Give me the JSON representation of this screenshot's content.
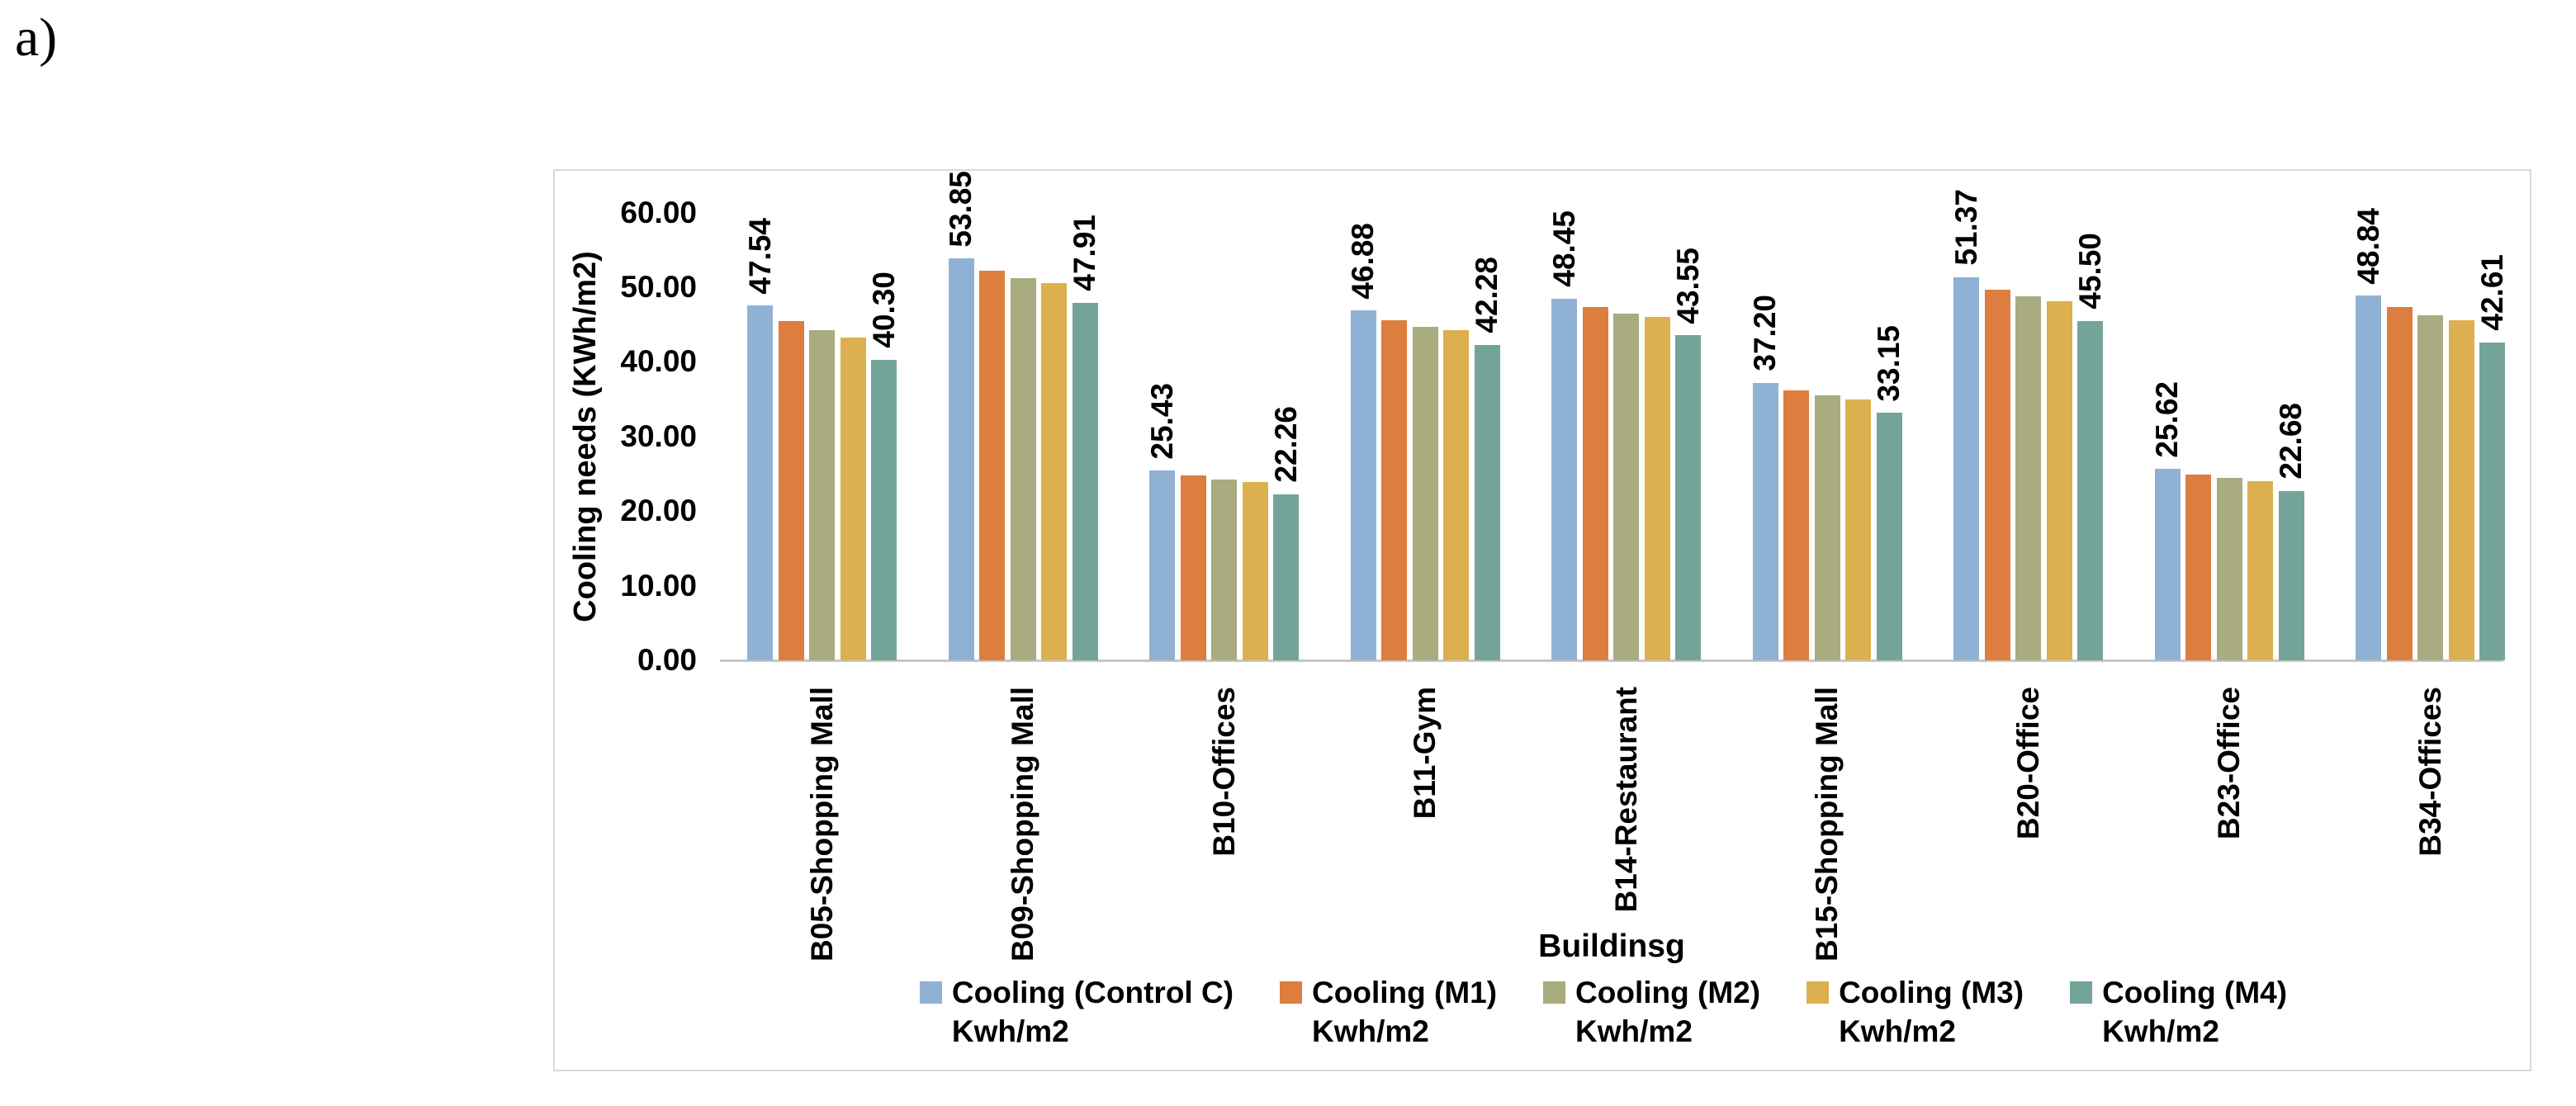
{
  "figure_label": "a)",
  "colors": {
    "series_blue": "#8FB2D4",
    "series_orange": "#DD7D3E",
    "series_olive": "#A8AC7E",
    "series_gold": "#DCB04F",
    "series_teal": "#74A499",
    "axis_line": "#C6C6C6",
    "frame_border": "#D9D9D9",
    "text": "#000000"
  },
  "chart_data": {
    "type": "bar",
    "title": "",
    "xlabel": "Buildinsg",
    "ylabel": "Cooling needs (KWh/m2)",
    "ylim": [
      0,
      60
    ],
    "grid": false,
    "legend_position": "bottom",
    "ytick_values": [
      60,
      50,
      40,
      30,
      20,
      10,
      0
    ],
    "ytick_labels": [
      "60.00",
      "50.00",
      "40.00",
      "30.00",
      "20.00",
      "10.00",
      "0.00"
    ],
    "categories": [
      "B05-Shopping Mall",
      "B09-Shopping Mall",
      "B10-Offices",
      "B11-Gym",
      "B14-Restaurant",
      "B15-Shopping Mall",
      "B20-Office",
      "B23-Office",
      "B34-Offices"
    ],
    "series": [
      {
        "name": "Cooling (Control C) Kwh/m2",
        "legend_line1": "Cooling (Control C)",
        "legend_line2": "Kwh/m2",
        "color": "#8FB2D4",
        "values": [
          47.54,
          53.85,
          25.43,
          46.88,
          48.45,
          37.2,
          51.37,
          25.62,
          48.84
        ],
        "data_labels": [
          "47.54",
          "53.85",
          "25.43",
          "46.88",
          "48.45",
          "37.20",
          "51.37",
          "25.62",
          "48.84"
        ]
      },
      {
        "name": "Cooling (M1) Kwh/m2",
        "legend_line1": "Cooling (M1)",
        "legend_line2": "Kwh/m2",
        "color": "#DD7D3E",
        "values": [
          45.5,
          52.2,
          24.8,
          45.6,
          47.3,
          36.2,
          49.7,
          24.9,
          47.3
        ],
        "data_labels": []
      },
      {
        "name": "Cooling (M2) Kwh/m2",
        "legend_line1": "Cooling (M2)",
        "legend_line2": "Kwh/m2",
        "color": "#A8AC7E",
        "values": [
          44.2,
          51.2,
          24.2,
          44.7,
          46.5,
          35.5,
          48.8,
          24.4,
          46.2
        ],
        "data_labels": []
      },
      {
        "name": "Cooling (M3) Kwh/m2",
        "legend_line1": "Cooling (M3)",
        "legend_line2": "Kwh/m2",
        "color": "#DCB04F",
        "values": [
          43.3,
          50.5,
          23.9,
          44.2,
          46.0,
          35.0,
          48.1,
          24.0,
          45.6
        ],
        "data_labels": []
      },
      {
        "name": "Cooling (M4) Kwh/m2",
        "legend_line1": "Cooling (M4)",
        "legend_line2": "Kwh/m2",
        "color": "#74A499",
        "values": [
          40.3,
          47.91,
          22.26,
          42.28,
          43.55,
          33.15,
          45.5,
          22.68,
          42.61
        ],
        "data_labels": [
          "40.30",
          "47.91",
          "22.26",
          "42.28",
          "43.55",
          "33.15",
          "45.50",
          "22.68",
          "42.61"
        ]
      }
    ]
  }
}
